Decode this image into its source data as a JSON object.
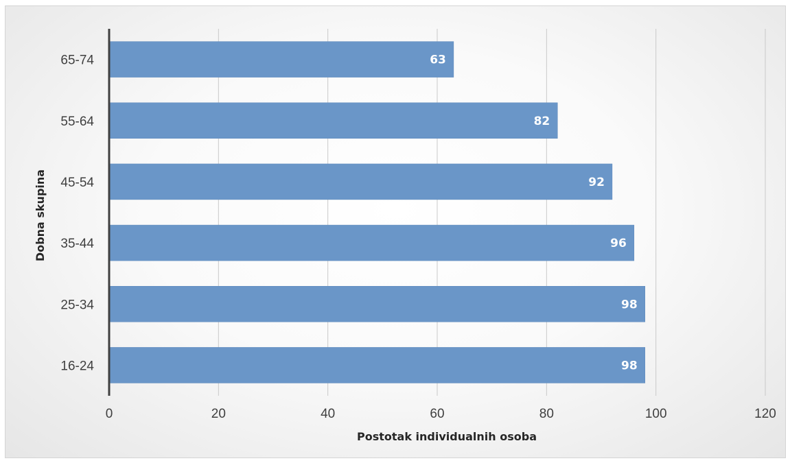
{
  "chart_data": {
    "type": "bar",
    "orientation": "horizontal",
    "categories": [
      "16-24",
      "25-34",
      "35-44",
      "45-54",
      "55-64",
      "65-74"
    ],
    "values": [
      98,
      98,
      96,
      92,
      82,
      63
    ],
    "xlabel": "Postotak individualnih osoba",
    "ylabel": "Dobna skupina",
    "xlim": [
      0,
      120
    ],
    "xticks": [
      0,
      20,
      40,
      60,
      80,
      100,
      120
    ],
    "grid": "vertical",
    "legend": "none",
    "data_labels": "inside-end",
    "colors": {
      "bar": "#6a96c8",
      "bar_edge": "#5b87bb",
      "grid": "#c9c9c9",
      "axis": "#404040",
      "label": "#ffffff"
    }
  }
}
